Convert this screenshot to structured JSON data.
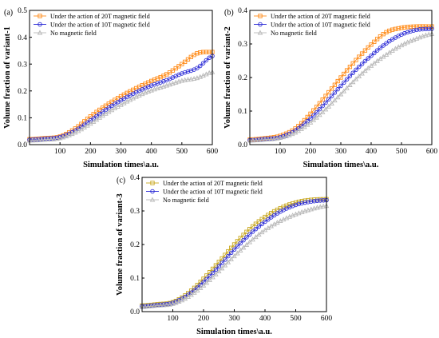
{
  "chart_data": [
    {
      "type": "line",
      "panel_label": "(a)",
      "xlabel": "Simulation  times\\a.u.",
      "ylabel": "Volume fraction of variant-1",
      "xlim": [
        0,
        600
      ],
      "ylim": [
        0,
        0.5
      ],
      "xticks": [
        100,
        200,
        300,
        400,
        500,
        600
      ],
      "xtick_labels": [
        "100",
        "200",
        "300",
        "400",
        "500",
        "600"
      ],
      "yticks": [
        0.0,
        0.1,
        0.2,
        0.3,
        0.4,
        0.5
      ],
      "ytick_labels": [
        "0.0",
        "0.1",
        "0.2",
        "0.3",
        "0.4",
        "0.5"
      ],
      "legend_position": "top-left",
      "x": [
        0,
        50,
        100,
        150,
        200,
        250,
        300,
        350,
        400,
        450,
        500,
        550,
        600
      ],
      "series": [
        {
          "name": "Under the action of 20T magnetic field",
          "color": "#ff8c1a",
          "marker": "square",
          "values": [
            0.02,
            0.024,
            0.03,
            0.06,
            0.105,
            0.145,
            0.18,
            0.21,
            0.237,
            0.262,
            0.3,
            0.34,
            0.345
          ]
        },
        {
          "name": "Under the action of 10T magnetic field",
          "color": "#2b2bd6",
          "marker": "circle",
          "values": [
            0.018,
            0.022,
            0.028,
            0.052,
            0.09,
            0.13,
            0.165,
            0.195,
            0.22,
            0.24,
            0.265,
            0.285,
            0.33
          ]
        },
        {
          "name": "No magnetic field",
          "color": "#b8b8b8",
          "marker": "triangle",
          "values": [
            0.015,
            0.018,
            0.024,
            0.045,
            0.078,
            0.115,
            0.148,
            0.178,
            0.202,
            0.22,
            0.238,
            0.248,
            0.27
          ]
        }
      ]
    },
    {
      "type": "line",
      "panel_label": "(b)",
      "xlabel": "Simulation  times\\a.u.",
      "ylabel": "Volume fraction of variant-2",
      "xlim": [
        0,
        600
      ],
      "ylim": [
        0,
        0.4
      ],
      "xticks": [
        100,
        200,
        300,
        400,
        500,
        600
      ],
      "xtick_labels": [
        "100",
        "200",
        "300",
        "400",
        "500",
        "600"
      ],
      "yticks": [
        0.0,
        0.1,
        0.2,
        0.3,
        0.4
      ],
      "ytick_labels": [
        "0.0",
        "0.1",
        "0.2",
        "0.3",
        "0.4"
      ],
      "legend_position": "top-left",
      "x": [
        0,
        50,
        100,
        150,
        200,
        250,
        300,
        350,
        400,
        450,
        500,
        550,
        600
      ],
      "series": [
        {
          "name": "Under the action of 20T magnetic field",
          "color": "#ff8c1a",
          "marker": "square",
          "values": [
            0.015,
            0.019,
            0.026,
            0.048,
            0.092,
            0.145,
            0.2,
            0.252,
            0.298,
            0.335,
            0.348,
            0.352,
            0.352
          ]
        },
        {
          "name": "Under the action of 10T magnetic field",
          "color": "#2b2bd6",
          "marker": "circle",
          "values": [
            0.013,
            0.017,
            0.022,
            0.042,
            0.078,
            0.125,
            0.175,
            0.223,
            0.265,
            0.302,
            0.328,
            0.342,
            0.345
          ]
        },
        {
          "name": "No magnetic field",
          "color": "#b8b8b8",
          "marker": "triangle",
          "values": [
            0.012,
            0.015,
            0.02,
            0.036,
            0.066,
            0.105,
            0.15,
            0.195,
            0.235,
            0.268,
            0.296,
            0.316,
            0.33
          ]
        }
      ]
    },
    {
      "type": "line",
      "panel_label": "(c)",
      "xlabel": "Simulation  times\\a.u.",
      "ylabel": "Volume fraction of variant-3",
      "xlim": [
        0,
        600
      ],
      "ylim": [
        0,
        0.4
      ],
      "xticks": [
        100,
        200,
        300,
        400,
        500,
        600
      ],
      "xtick_labels": [
        "100",
        "200",
        "300",
        "400",
        "500",
        "600"
      ],
      "yticks": [
        0.0,
        0.1,
        0.2,
        0.3,
        0.4
      ],
      "ytick_labels": [
        "0.0",
        "0.1",
        "0.2",
        "0.3",
        "0.4"
      ],
      "legend_position": "top-left",
      "x": [
        0,
        50,
        100,
        150,
        200,
        250,
        300,
        350,
        400,
        450,
        500,
        550,
        600
      ],
      "series": [
        {
          "name": "Under the action of 20T magnetic field",
          "color": "#c9a820",
          "marker": "square",
          "values": [
            0.018,
            0.022,
            0.028,
            0.055,
            0.098,
            0.148,
            0.2,
            0.246,
            0.282,
            0.308,
            0.325,
            0.333,
            0.335
          ]
        },
        {
          "name": "Under the action of 10T magnetic field",
          "color": "#2b2bd6",
          "marker": "circle",
          "values": [
            0.016,
            0.02,
            0.026,
            0.05,
            0.088,
            0.135,
            0.185,
            0.23,
            0.268,
            0.298,
            0.318,
            0.328,
            0.332
          ]
        },
        {
          "name": "No magnetic field",
          "color": "#b8b8b8",
          "marker": "triangle",
          "values": [
            0.014,
            0.018,
            0.023,
            0.044,
            0.078,
            0.12,
            0.165,
            0.207,
            0.243,
            0.27,
            0.29,
            0.305,
            0.315
          ]
        }
      ]
    }
  ]
}
